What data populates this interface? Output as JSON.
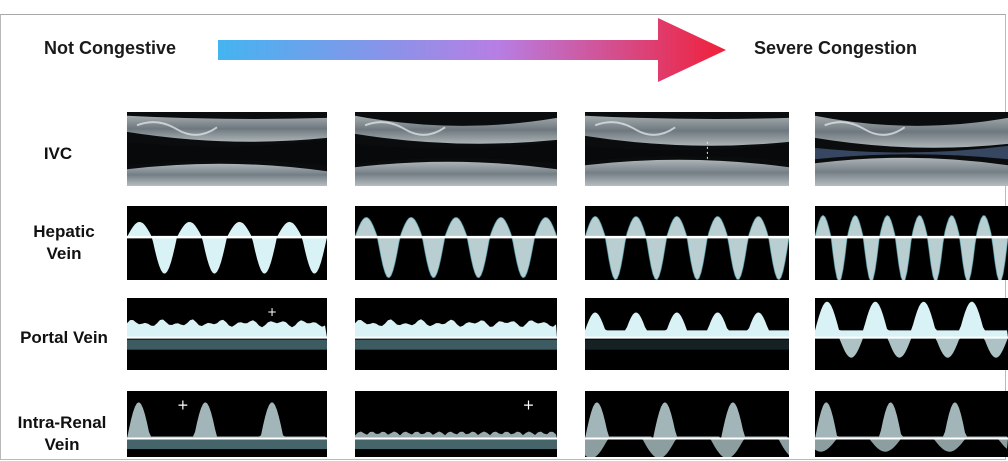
{
  "header": {
    "left_label": "Not Congestive",
    "right_label": "Severe Congestion"
  },
  "rows": [
    {
      "lines": [
        "IVC"
      ]
    },
    {
      "lines": [
        "Hepatic",
        "Vein"
      ]
    },
    {
      "lines": [
        "Portal Vein"
      ]
    },
    {
      "lines": [
        "Intra-Renal",
        "Vein"
      ]
    }
  ],
  "panel_columns": 4,
  "colors": {
    "arrow_start": "#44b4f0",
    "arrow_mid": "#b77ee4",
    "arrow_end": "#f0203a",
    "doppler_trace": "#d8f2f6",
    "panel_background": "#000000"
  }
}
